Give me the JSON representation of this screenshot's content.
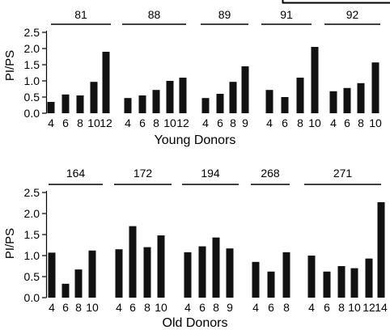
{
  "chart_data": [
    {
      "type": "bar",
      "panel": "top",
      "xlabel": "Young Donors",
      "ylabel": "PI/PS",
      "ylim": [
        0,
        2.5
      ],
      "yticks": [
        "0.0",
        "0.5",
        "1.0",
        "1.5",
        "2.0",
        "2.5"
      ],
      "groups": [
        {
          "label": "81",
          "categories": [
            "4",
            "6",
            "8",
            "10",
            "12"
          ],
          "values": [
            0.35,
            0.58,
            0.55,
            0.97,
            1.9
          ]
        },
        {
          "label": "88",
          "categories": [
            "4",
            "6",
            "8",
            "10",
            "12"
          ],
          "values": [
            0.47,
            0.55,
            0.72,
            1.0,
            1.1
          ]
        },
        {
          "label": "89",
          "categories": [
            "4",
            "6",
            "8",
            "9"
          ],
          "values": [
            0.47,
            0.6,
            0.97,
            1.45
          ]
        },
        {
          "label": "91",
          "categories": [
            "4",
            "6",
            "8",
            "10"
          ],
          "values": [
            0.72,
            0.5,
            1.1,
            2.05
          ]
        },
        {
          "label": "92",
          "categories": [
            "4",
            "6",
            "8",
            "10"
          ],
          "values": [
            0.68,
            0.78,
            0.93,
            1.57
          ]
        }
      ]
    },
    {
      "type": "bar",
      "panel": "bottom",
      "xlabel": "Old Donors",
      "ylabel": "PI/PS",
      "ylim": [
        0,
        2.5
      ],
      "yticks": [
        "0.0",
        "0.5",
        "1.0",
        "1.5",
        "2.0",
        "2.5"
      ],
      "groups": [
        {
          "label": "164",
          "categories": [
            "4",
            "6",
            "8",
            "10"
          ],
          "values": [
            1.07,
            0.33,
            0.67,
            1.12
          ]
        },
        {
          "label": "172",
          "categories": [
            "4",
            "6",
            "8",
            "10"
          ],
          "values": [
            1.15,
            1.7,
            1.2,
            1.48
          ]
        },
        {
          "label": "194",
          "categories": [
            "4",
            "6",
            "8",
            "9"
          ],
          "values": [
            1.08,
            1.22,
            1.43,
            1.17
          ]
        },
        {
          "label": "268",
          "categories": [
            "4",
            "6",
            "8"
          ],
          "values": [
            0.85,
            0.62,
            1.08
          ]
        },
        {
          "label": "271",
          "categories": [
            "4",
            "6",
            "8",
            "10",
            "12",
            "14"
          ],
          "values": [
            1.0,
            0.62,
            0.75,
            0.7,
            0.93,
            2.27
          ]
        }
      ]
    }
  ]
}
